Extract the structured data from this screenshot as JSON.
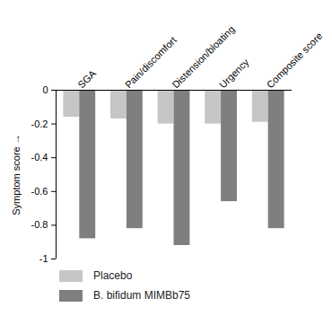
{
  "chart_data": {
    "type": "bar",
    "categories": [
      "SGA",
      "Pain/discomfort",
      "Distension/bloating",
      "Urgency",
      "Composite score"
    ],
    "series": [
      {
        "name": "Placebo",
        "color": "#c6c6c6",
        "values": [
          -0.16,
          -0.17,
          -0.2,
          -0.2,
          -0.19
        ]
      },
      {
        "name": "B. bifidum MIMBb75",
        "color": "#7f7f7f",
        "values": [
          -0.88,
          -0.82,
          -0.92,
          -0.66,
          -0.82
        ]
      }
    ],
    "ylabel": "Symptom score",
    "ylim": [
      -1,
      0
    ],
    "yticks": [
      0,
      -0.2,
      -0.4,
      -0.6,
      -0.8,
      -1
    ],
    "legend": "bottom"
  }
}
